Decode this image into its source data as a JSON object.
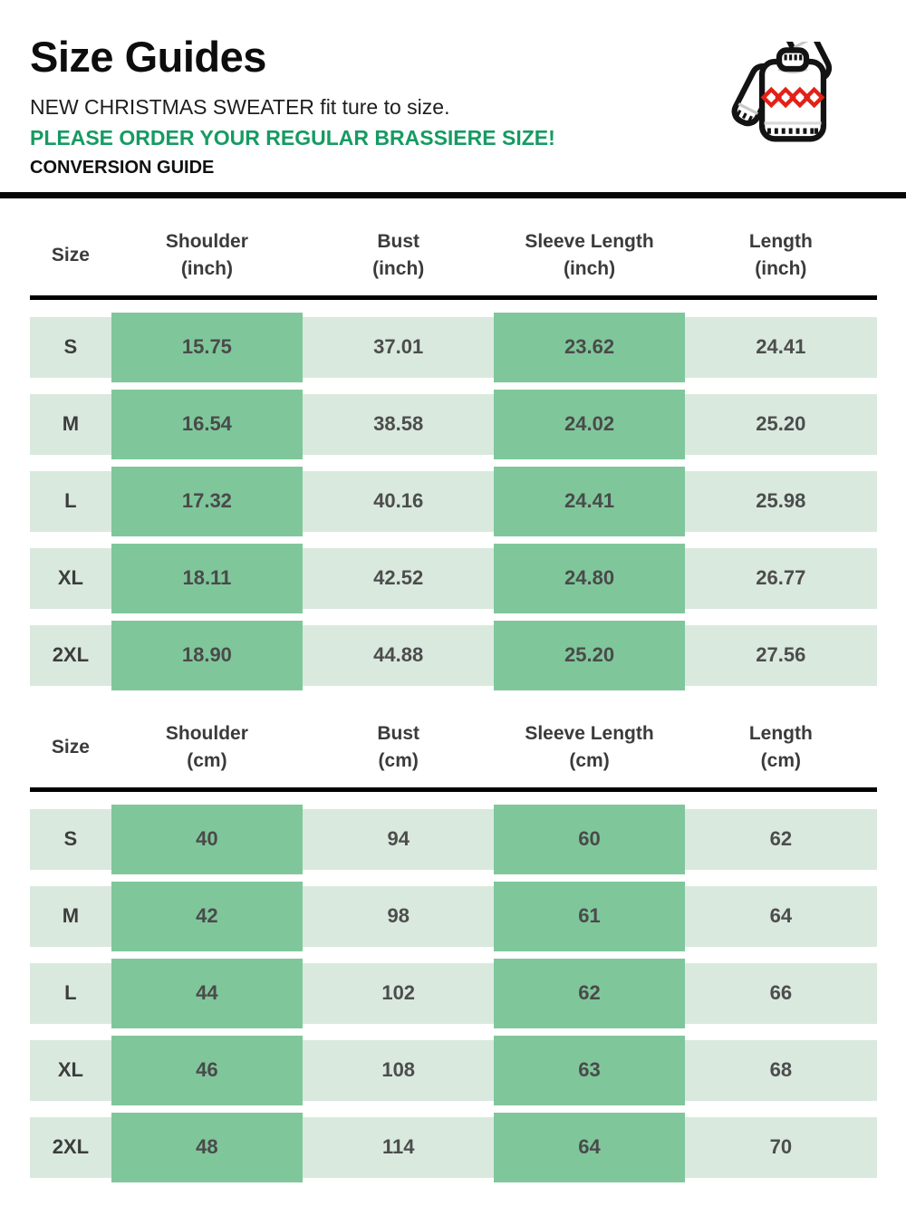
{
  "header": {
    "title": "Size Guides",
    "subtitle": "NEW CHRISTMAS SWEATER fit ture to size.",
    "notice": "PLEASE ORDER YOUR REGULAR BRASSIERE SIZE!",
    "conversion_label": "CONVERSION GUIDE"
  },
  "icons": {
    "sweater": "christmas-sweater-icon"
  },
  "colors": {
    "accent_green_text": "#169b62",
    "cell_green_dark": "#7fc79b",
    "cell_green_light": "#d9e9de",
    "divider_black": "#060606",
    "value_text": "#4d4d4d",
    "sweater_red": "#e32116"
  },
  "tables": [
    {
      "name": "inch",
      "columns": [
        {
          "label": "Size",
          "unit": ""
        },
        {
          "label": "Shoulder",
          "unit": "(inch)"
        },
        {
          "label": "Bust",
          "unit": "(inch)"
        },
        {
          "label": "Sleeve Length",
          "unit": "(inch)"
        },
        {
          "label": "Length",
          "unit": "(inch)"
        }
      ],
      "rows": [
        [
          "S",
          "15.75",
          "37.01",
          "23.62",
          "24.41"
        ],
        [
          "M",
          "16.54",
          "38.58",
          "24.02",
          "25.20"
        ],
        [
          "L",
          "17.32",
          "40.16",
          "24.41",
          "25.98"
        ],
        [
          "XL",
          "18.11",
          "42.52",
          "24.80",
          "26.77"
        ],
        [
          "2XL",
          "18.90",
          "44.88",
          "25.20",
          "27.56"
        ]
      ]
    },
    {
      "name": "cm",
      "columns": [
        {
          "label": "Size",
          "unit": ""
        },
        {
          "label": "Shoulder",
          "unit": "(cm)"
        },
        {
          "label": "Bust",
          "unit": "(cm)"
        },
        {
          "label": "Sleeve Length",
          "unit": "(cm)"
        },
        {
          "label": "Length",
          "unit": "(cm)"
        }
      ],
      "rows": [
        [
          "S",
          "40",
          "94",
          "60",
          "62"
        ],
        [
          "M",
          "42",
          "98",
          "61",
          "64"
        ],
        [
          "L",
          "44",
          "102",
          "62",
          "66"
        ],
        [
          "XL",
          "46",
          "108",
          "63",
          "68"
        ],
        [
          "2XL",
          "48",
          "114",
          "64",
          "70"
        ]
      ]
    }
  ],
  "chart_data": [
    {
      "type": "table",
      "title": "Size Guides (inch)",
      "columns": [
        "Size",
        "Shoulder (inch)",
        "Bust (inch)",
        "Sleeve Length (inch)",
        "Length (inch)"
      ],
      "rows": [
        [
          "S",
          15.75,
          37.01,
          23.62,
          24.41
        ],
        [
          "M",
          16.54,
          38.58,
          24.02,
          25.2
        ],
        [
          "L",
          17.32,
          40.16,
          24.41,
          25.98
        ],
        [
          "XL",
          18.11,
          42.52,
          24.8,
          26.77
        ],
        [
          "2XL",
          18.9,
          44.88,
          25.2,
          27.56
        ]
      ]
    },
    {
      "type": "table",
      "title": "Size Guides (cm)",
      "columns": [
        "Size",
        "Shoulder (cm)",
        "Bust (cm)",
        "Sleeve Length (cm)",
        "Length (cm)"
      ],
      "rows": [
        [
          "S",
          40,
          94,
          60,
          62
        ],
        [
          "M",
          42,
          98,
          61,
          64
        ],
        [
          "L",
          44,
          102,
          62,
          66
        ],
        [
          "XL",
          46,
          108,
          63,
          68
        ],
        [
          "2XL",
          48,
          114,
          64,
          70
        ]
      ]
    }
  ]
}
